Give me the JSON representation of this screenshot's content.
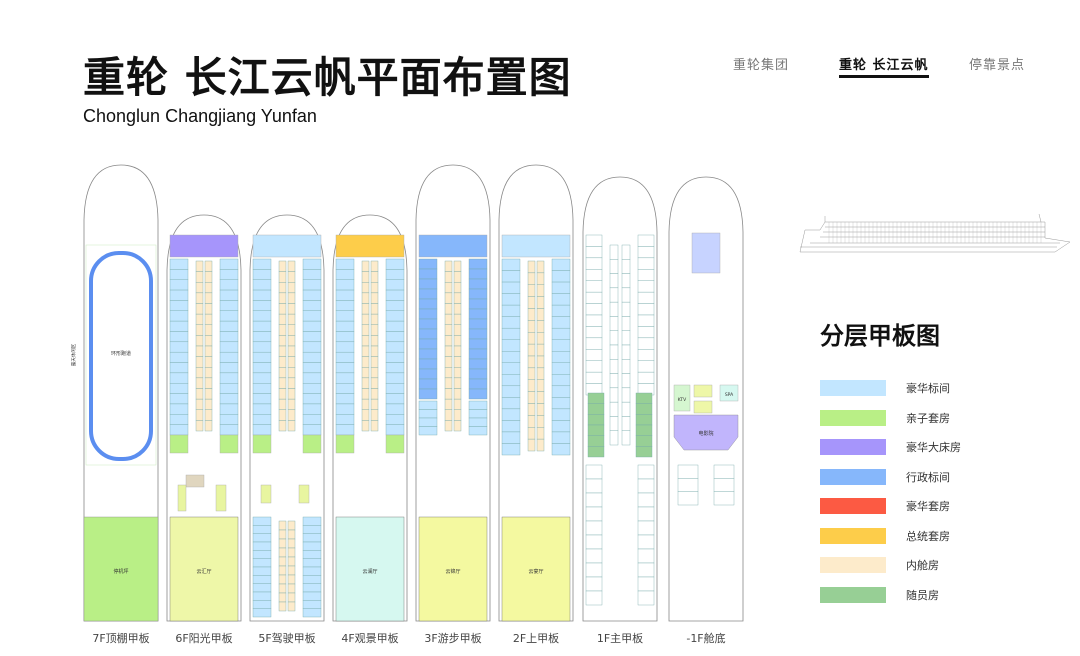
{
  "header": {
    "title": "重轮 长江云帆平面布置图",
    "subtitle": "Chonglun Changjiang Yunfan"
  },
  "nav": [
    {
      "label": "重轮集团",
      "active": false
    },
    {
      "label": "重轮 长江云帆",
      "active": true
    },
    {
      "label": "停靠景点",
      "active": false
    }
  ],
  "decks": [
    {
      "label": "7F顶棚甲板",
      "areas": [
        "环形跑道",
        "露天休闲区",
        "停机坪"
      ]
    },
    {
      "label": "6F阳光甲板",
      "hall": "云汇厅"
    },
    {
      "label": "5F驾驶甲板"
    },
    {
      "label": "4F观景甲板",
      "hall": "云澜厅"
    },
    {
      "label": "3F游步甲板",
      "hall": "云锦厅"
    },
    {
      "label": "2F上甲板",
      "hall": "云宴厅"
    },
    {
      "label": "1F主甲板"
    },
    {
      "label": "-1F舱底",
      "areas": [
        "KTV",
        "SPA",
        "电影院"
      ]
    }
  ],
  "legend": {
    "title": "分层甲板图",
    "items": [
      {
        "label": "豪华标间",
        "color": "#c2e6ff"
      },
      {
        "label": "亲子套房",
        "color": "#b9ef86"
      },
      {
        "label": "豪华大床房",
        "color": "#a695fb"
      },
      {
        "label": "行政标间",
        "color": "#86b7fb"
      },
      {
        "label": "豪华套房",
        "color": "#fc5a43"
      },
      {
        "label": "总统套房",
        "color": "#fdcd4a"
      },
      {
        "label": "内舱房",
        "color": "#fdebcb"
      },
      {
        "label": "随员房",
        "color": "#97cf95"
      }
    ]
  }
}
